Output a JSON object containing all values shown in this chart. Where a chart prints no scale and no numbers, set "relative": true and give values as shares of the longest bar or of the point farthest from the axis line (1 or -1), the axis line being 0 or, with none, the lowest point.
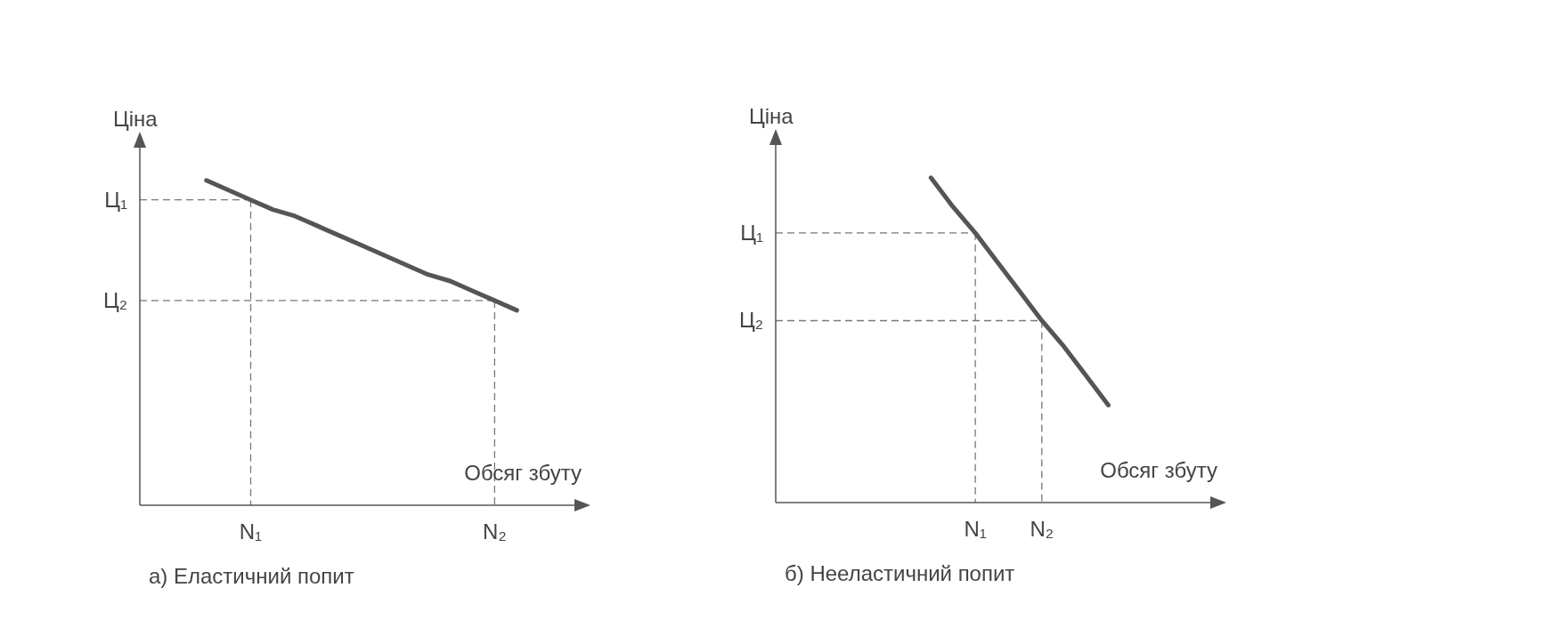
{
  "chart_data": [
    {
      "type": "line",
      "title": "а) Еластичний попит",
      "xlabel": "Обсяг збуту",
      "ylabel": "Ціна",
      "relative": true,
      "line_style": "solid",
      "marker": "none",
      "categories": [
        null,
        null,
        null,
        null,
        null,
        "N₁",
        null,
        null,
        null,
        null,
        null,
        null,
        null,
        null,
        null,
        null,
        "N₂",
        null,
        null,
        null,
        null
      ],
      "series": [
        {
          "color": "#555555",
          "values": [
            null,
            null,
            null,
            1,
            0.97,
            0.94,
            0.91,
            0.89,
            0.86,
            0.83,
            0.8,
            0.77,
            0.74,
            0.71,
            0.69,
            0.66,
            0.63,
            0.6,
            null,
            null,
            null
          ]
        }
      ],
      "ref_lines": [
        {
          "axis": "y",
          "value": 0.94,
          "label": "Ц₁",
          "line_style": "dashed",
          "color": "#777777"
        },
        {
          "axis": "y",
          "value": 0.63,
          "label": "Ц₂",
          "line_style": "dashed",
          "color": "#777777"
        }
      ]
    },
    {
      "type": "line",
      "title": "б) Нееластичний попит",
      "xlabel": "Обсяг збуту",
      "ylabel": "Ціна",
      "relative": true,
      "line_style": "solid",
      "marker": "none",
      "categories": [
        null,
        null,
        null,
        null,
        null,
        null,
        null,
        null,
        null,
        "N₁",
        null,
        null,
        "N₂",
        null,
        null,
        null,
        null,
        null,
        null,
        null,
        null
      ],
      "series": [
        {
          "color": "#555555",
          "values": [
            null,
            null,
            null,
            null,
            null,
            null,
            null,
            1,
            0.91,
            0.83,
            0.74,
            0.65,
            0.56,
            0.48,
            0.39,
            0.3,
            null,
            null,
            null,
            null,
            null
          ]
        }
      ],
      "ref_lines": [
        {
          "axis": "y",
          "value": 0.83,
          "label": "Ц₁",
          "line_style": "dashed",
          "color": "#777777"
        },
        {
          "axis": "y",
          "value": 0.56,
          "label": "Ц₂",
          "line_style": "dashed",
          "color": "#777777"
        }
      ]
    }
  ]
}
